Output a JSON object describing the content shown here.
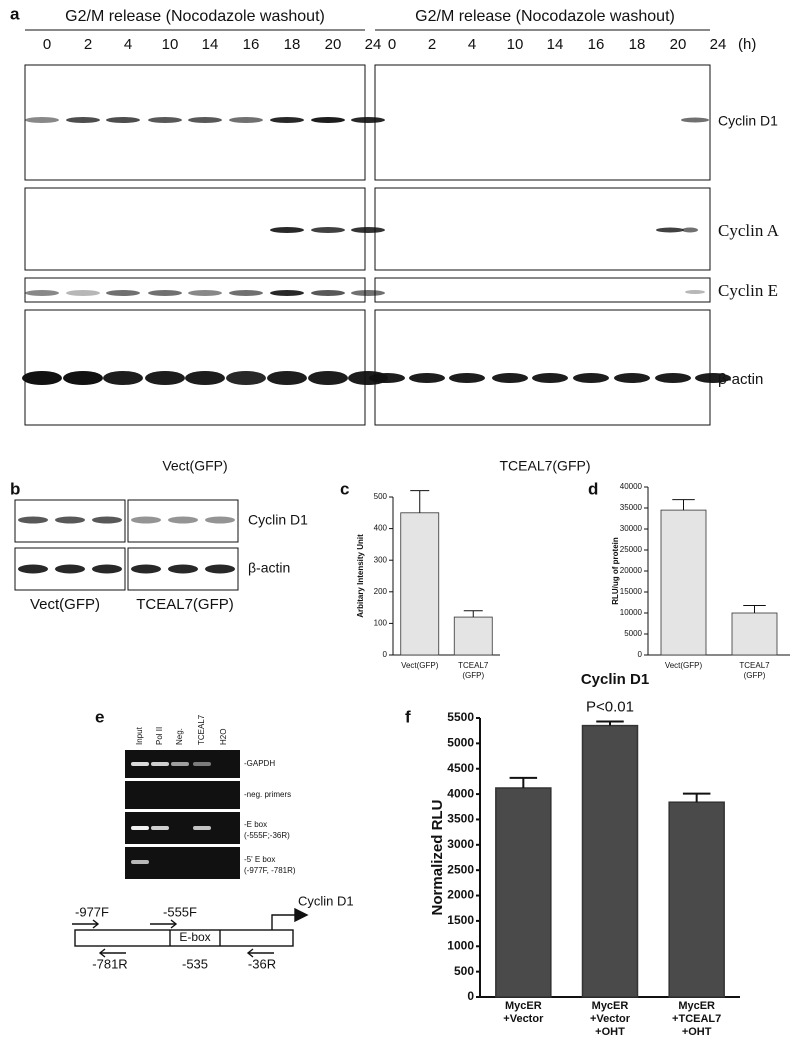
{
  "panel_labels": [
    "a",
    "b",
    "c",
    "d",
    "e",
    "f"
  ],
  "panel_a": {
    "headers": [
      "G2/M release (Nocodazole washout)",
      "G2/M release (Nocodazole washout)"
    ],
    "timepoints_left": [
      0,
      2,
      4,
      10,
      14,
      16,
      18,
      20,
      24
    ],
    "timepoints_right": [
      0,
      2,
      4,
      10,
      14,
      16,
      18,
      20,
      24
    ],
    "unit": "(h)",
    "row_labels": [
      "Cyclin D1",
      "Cyclin A",
      "Cyclin E",
      "β-actin"
    ],
    "group_labels": [
      "Vect(GFP)",
      "TCEAL7(GFP)"
    ]
  },
  "panel_b": {
    "row_labels": [
      "Cyclin D1",
      "β-actin"
    ],
    "group_labels": [
      "Vect(GFP)",
      "TCEAL7(GFP)"
    ]
  },
  "panel_e": {
    "lanes": [
      "Input",
      "Pol II",
      "Neg.",
      "TCEAL7",
      "H2O"
    ],
    "rows": [
      [
        "-GAPDH"
      ],
      [
        "-neg. primers"
      ],
      [
        "-E box",
        "(-555F;-36R)"
      ],
      [
        "-5' E box",
        "(-977F, -781R)"
      ]
    ],
    "diagram_labels": [
      "-977F",
      "-555F",
      "Cyclin D1",
      "E-box",
      "-781R",
      "-535",
      "-36R"
    ]
  },
  "chart_data": [
    {
      "type": "bar",
      "ylabel": "Arbitary Intensity Unit",
      "categories": [
        [
          "Vect(GFP)"
        ],
        [
          "TCEAL7",
          "(GFP)"
        ]
      ],
      "values": [
        450,
        120
      ],
      "errors": [
        70,
        20
      ],
      "color": "#e4e4e4",
      "ylim": [
        0,
        500
      ],
      "yticks": [
        0,
        100,
        200,
        300,
        400,
        500
      ]
    },
    {
      "type": "bar",
      "ylabel": "RLU/ug of protein",
      "categories": [
        [
          "Vect(GFP)"
        ],
        [
          "TCEAL7",
          "(GFP)"
        ]
      ],
      "values": [
        34500,
        10000
      ],
      "errors": [
        2500,
        1800
      ],
      "color": "#e4e4e4",
      "ylim": [
        0,
        40000
      ],
      "yticks": [
        0,
        5000,
        10000,
        15000,
        20000,
        25000,
        30000,
        35000,
        40000
      ]
    },
    {
      "type": "bar",
      "title": "Cyclin D1",
      "ylabel": "Normalized RLU",
      "annotation": "P<0.01",
      "categories": [
        [
          "MycER",
          "+Vector"
        ],
        [
          "MycER",
          "+Vector",
          "+OHT"
        ],
        [
          "MycER",
          "+TCEAL7",
          "+OHT"
        ]
      ],
      "values": [
        4120,
        5350,
        3840
      ],
      "errors": [
        200,
        80,
        170
      ],
      "color": "#4a4a4a",
      "ylim": [
        0,
        5500
      ],
      "yticks": [
        0,
        500,
        1000,
        1500,
        2000,
        2500,
        3000,
        3500,
        4000,
        4500,
        5000,
        5500
      ]
    }
  ]
}
